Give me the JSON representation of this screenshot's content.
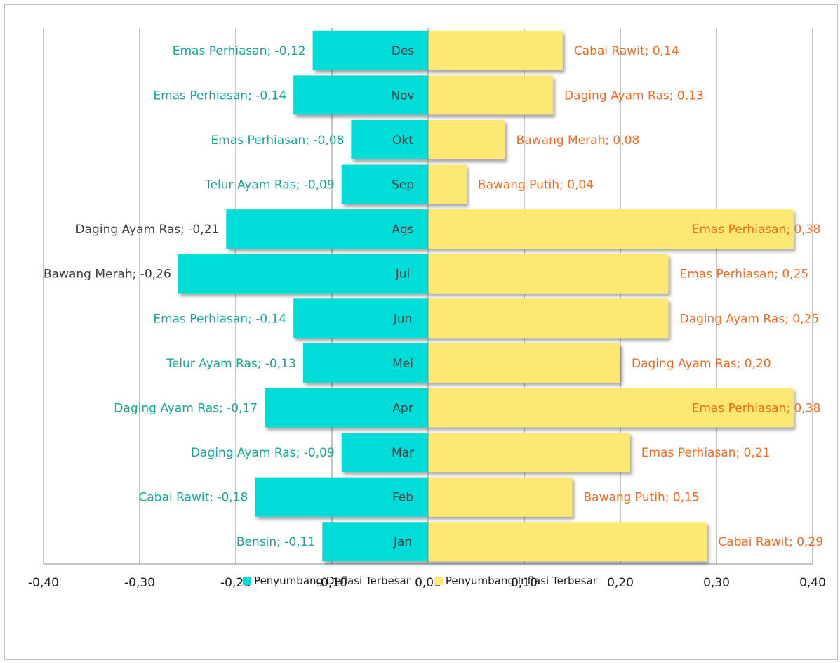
{
  "chart_data": {
    "type": "bar",
    "orientation": "horizontal",
    "categories": [
      "Jan",
      "Feb",
      "Mar",
      "Apr",
      "Mei",
      "Jun",
      "Jul",
      "Ags",
      "Sep",
      "Okt",
      "Nov",
      "Des"
    ],
    "series": [
      {
        "name": "Penyumbang Deflasi Terbesar",
        "color": "#00dcd7",
        "values": [
          -0.11,
          -0.18,
          -0.09,
          -0.17,
          -0.13,
          -0.14,
          -0.26,
          -0.21,
          -0.09,
          -0.08,
          -0.14,
          -0.12
        ],
        "data_labels": [
          "Bensin; -0,11",
          "Cabai Rawit; -0,18",
          "Daging Ayam Ras; -0,09",
          "Daging Ayam Ras; -0,17",
          "Telur Ayam Ras; -0,13",
          "Emas Perhiasan; -0,14",
          "Bawang Merah; -0,26",
          "Daging Ayam Ras; -0,21",
          "Telur Ayam Ras; -0,09",
          "Emas Perhiasan; -0,08",
          "Emas Perhiasan; -0,14",
          "Emas Perhiasan; -0,12"
        ],
        "label_colors": [
          "#13a59a",
          "#13a59a",
          "#13a59a",
          "#13a59a",
          "#13a59a",
          "#13a59a",
          "#3c3c3c",
          "#3c3c3c",
          "#13a59a",
          "#13a59a",
          "#13a59a",
          "#13a59a"
        ]
      },
      {
        "name": "Penyumbang Inflasi Terbesar",
        "color": "#fde873",
        "values": [
          0.29,
          0.15,
          0.21,
          0.38,
          0.2,
          0.25,
          0.25,
          0.38,
          0.04,
          0.08,
          0.13,
          0.14
        ],
        "data_labels": [
          "Cabai Rawit; 0,29",
          "Bawang Putih; 0,15",
          "Emas Perhiasan; 0,21",
          "Emas Perhiasan; 0,38",
          "Daging Ayam Ras; 0,20",
          "Daging Ayam Ras; 0,25",
          "Emas Perhiasan; 0,25",
          "Emas Perhiasan; 0,38",
          "Bawang Putih; 0,04",
          "Bawang Merah; 0,08",
          "Daging Ayam Ras; 0,13",
          "Cabai Rawit; 0,14"
        ],
        "label_colors": [
          "#f26a21",
          "#f26a21",
          "#f26a21",
          "#f26a21",
          "#f26a21",
          "#f26a21",
          "#f26a21",
          "#f26a21",
          "#f26a21",
          "#f26a21",
          "#f26a21",
          "#f26a21"
        ]
      }
    ],
    "xlim": [
      -0.4,
      0.4
    ],
    "x_ticks": [
      "-0,40",
      "-0,30",
      "-0,20",
      "-0,10",
      "0,00",
      "0,10",
      "0,20",
      "0,30",
      "0,40"
    ],
    "grid": true,
    "legend_position": "bottom"
  }
}
